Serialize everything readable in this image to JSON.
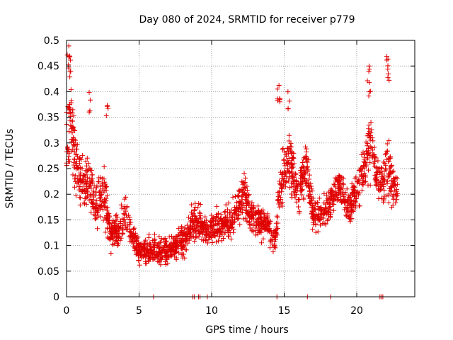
{
  "chart_data": {
    "type": "scatter",
    "title": "Day 080 of 2024, SRMTID for receiver p779",
    "xlabel": "GPS time / hours",
    "ylabel": "SRMTID / TECUs",
    "xlim": [
      0,
      24
    ],
    "ylim": [
      0,
      0.5
    ],
    "xticks": [
      0,
      5,
      10,
      15,
      20
    ],
    "yticks": [
      0,
      0.05,
      0.1,
      0.15,
      0.2,
      0.25,
      0.3,
      0.35,
      0.4,
      0.45,
      0.5
    ],
    "xtick_labels": [
      "0",
      "5",
      "10",
      "15",
      "20"
    ],
    "ytick_labels": [
      "0",
      "0.05",
      "0.1",
      "0.15",
      "0.2",
      "0.25",
      "0.3",
      "0.35",
      "0.4",
      "0.45",
      "0.5"
    ],
    "grid": true,
    "marker": "+",
    "color": "#e00000",
    "series": [
      {
        "name": "SRMTID",
        "envelope": [
          {
            "x": 0.0,
            "mean": 0.3,
            "spread": 0.12
          },
          {
            "x": 0.3,
            "mean": 0.36,
            "spread": 0.13
          },
          {
            "x": 0.6,
            "mean": 0.26,
            "spread": 0.1
          },
          {
            "x": 1.0,
            "mean": 0.22,
            "spread": 0.09
          },
          {
            "x": 1.5,
            "mean": 0.22,
            "spread": 0.1
          },
          {
            "x": 2.0,
            "mean": 0.18,
            "spread": 0.07
          },
          {
            "x": 2.6,
            "mean": 0.2,
            "spread": 0.1
          },
          {
            "x": 3.0,
            "mean": 0.12,
            "spread": 0.05
          },
          {
            "x": 3.6,
            "mean": 0.13,
            "spread": 0.05
          },
          {
            "x": 4.0,
            "mean": 0.16,
            "spread": 0.07
          },
          {
            "x": 4.5,
            "mean": 0.12,
            "spread": 0.04
          },
          {
            "x": 5.0,
            "mean": 0.09,
            "spread": 0.04
          },
          {
            "x": 6.0,
            "mean": 0.09,
            "spread": 0.05
          },
          {
            "x": 7.0,
            "mean": 0.09,
            "spread": 0.05
          },
          {
            "x": 8.0,
            "mean": 0.11,
            "spread": 0.05
          },
          {
            "x": 8.8,
            "mean": 0.15,
            "spread": 0.06
          },
          {
            "x": 9.5,
            "mean": 0.13,
            "spread": 0.05
          },
          {
            "x": 10.5,
            "mean": 0.14,
            "spread": 0.05
          },
          {
            "x": 11.5,
            "mean": 0.15,
            "spread": 0.06
          },
          {
            "x": 12.2,
            "mean": 0.2,
            "spread": 0.08
          },
          {
            "x": 13.0,
            "mean": 0.15,
            "spread": 0.06
          },
          {
            "x": 13.8,
            "mean": 0.14,
            "spread": 0.05
          },
          {
            "x": 14.4,
            "mean": 0.11,
            "spread": 0.05
          },
          {
            "x": 14.8,
            "mean": 0.22,
            "spread": 0.1
          },
          {
            "x": 15.3,
            "mean": 0.28,
            "spread": 0.1
          },
          {
            "x": 16.0,
            "mean": 0.2,
            "spread": 0.07
          },
          {
            "x": 16.5,
            "mean": 0.26,
            "spread": 0.07
          },
          {
            "x": 17.0,
            "mean": 0.16,
            "spread": 0.06
          },
          {
            "x": 18.0,
            "mean": 0.17,
            "spread": 0.05
          },
          {
            "x": 18.8,
            "mean": 0.22,
            "spread": 0.06
          },
          {
            "x": 19.5,
            "mean": 0.17,
            "spread": 0.06
          },
          {
            "x": 20.3,
            "mean": 0.23,
            "spread": 0.07
          },
          {
            "x": 20.9,
            "mean": 0.3,
            "spread": 0.12
          },
          {
            "x": 21.5,
            "mean": 0.22,
            "spread": 0.07
          },
          {
            "x": 22.2,
            "mean": 0.24,
            "spread": 0.12
          },
          {
            "x": 22.8,
            "mean": 0.2,
            "spread": 0.05
          }
        ],
        "spikes": [
          {
            "x": 0.1,
            "y": 0.49
          },
          {
            "x": 0.2,
            "y": 0.47
          },
          {
            "x": 0.3,
            "y": 0.44
          },
          {
            "x": 20.8,
            "y": 0.45
          },
          {
            "x": 20.9,
            "y": 0.43
          },
          {
            "x": 22.1,
            "y": 0.47
          },
          {
            "x": 22.2,
            "y": 0.45
          },
          {
            "x": 14.6,
            "y": 0.42
          },
          {
            "x": 14.7,
            "y": 0.4
          },
          {
            "x": 15.3,
            "y": 0.4
          },
          {
            "x": 1.6,
            "y": 0.4
          },
          {
            "x": 2.8,
            "y": 0.39
          }
        ],
        "zero_markers": [
          6.0,
          8.7,
          8.8,
          9.1,
          9.2,
          9.7,
          14.5,
          16.6,
          18.2,
          21.6,
          21.7,
          21.8
        ]
      }
    ]
  }
}
